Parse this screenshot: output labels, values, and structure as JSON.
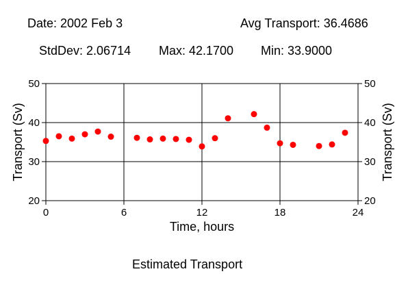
{
  "header": {
    "date": "Date: 2002 Feb 3",
    "avg": "Avg Transport: 36.4686",
    "stddev": "StdDev: 2.06714",
    "max": "Max: 42.1700",
    "min": "Min: 33.9000"
  },
  "caption": "Estimated Transport",
  "chart_data": {
    "type": "scatter",
    "title": "Estimated Transport",
    "xlabel": "Time, hours",
    "ylabel": "Transport (Sv)",
    "y2label": "Transport (Sv)",
    "xlim": [
      0,
      24
    ],
    "ylim": [
      20,
      50
    ],
    "xticks": [
      0,
      6,
      12,
      18,
      24
    ],
    "yticks": [
      20,
      30,
      40,
      50
    ],
    "grid": true,
    "marker_color": "#ff0000",
    "x": [
      0,
      1,
      2,
      3,
      4,
      5,
      7,
      8,
      9,
      10,
      11,
      12,
      13,
      14,
      16,
      17,
      18,
      19,
      21,
      22,
      23
    ],
    "y": [
      35.3,
      36.5,
      35.9,
      37.0,
      37.7,
      36.4,
      36.1,
      35.7,
      35.9,
      35.8,
      35.6,
      33.9,
      36.0,
      41.1,
      42.17,
      38.7,
      34.7,
      34.3,
      34.0,
      34.4,
      37.4
    ]
  }
}
